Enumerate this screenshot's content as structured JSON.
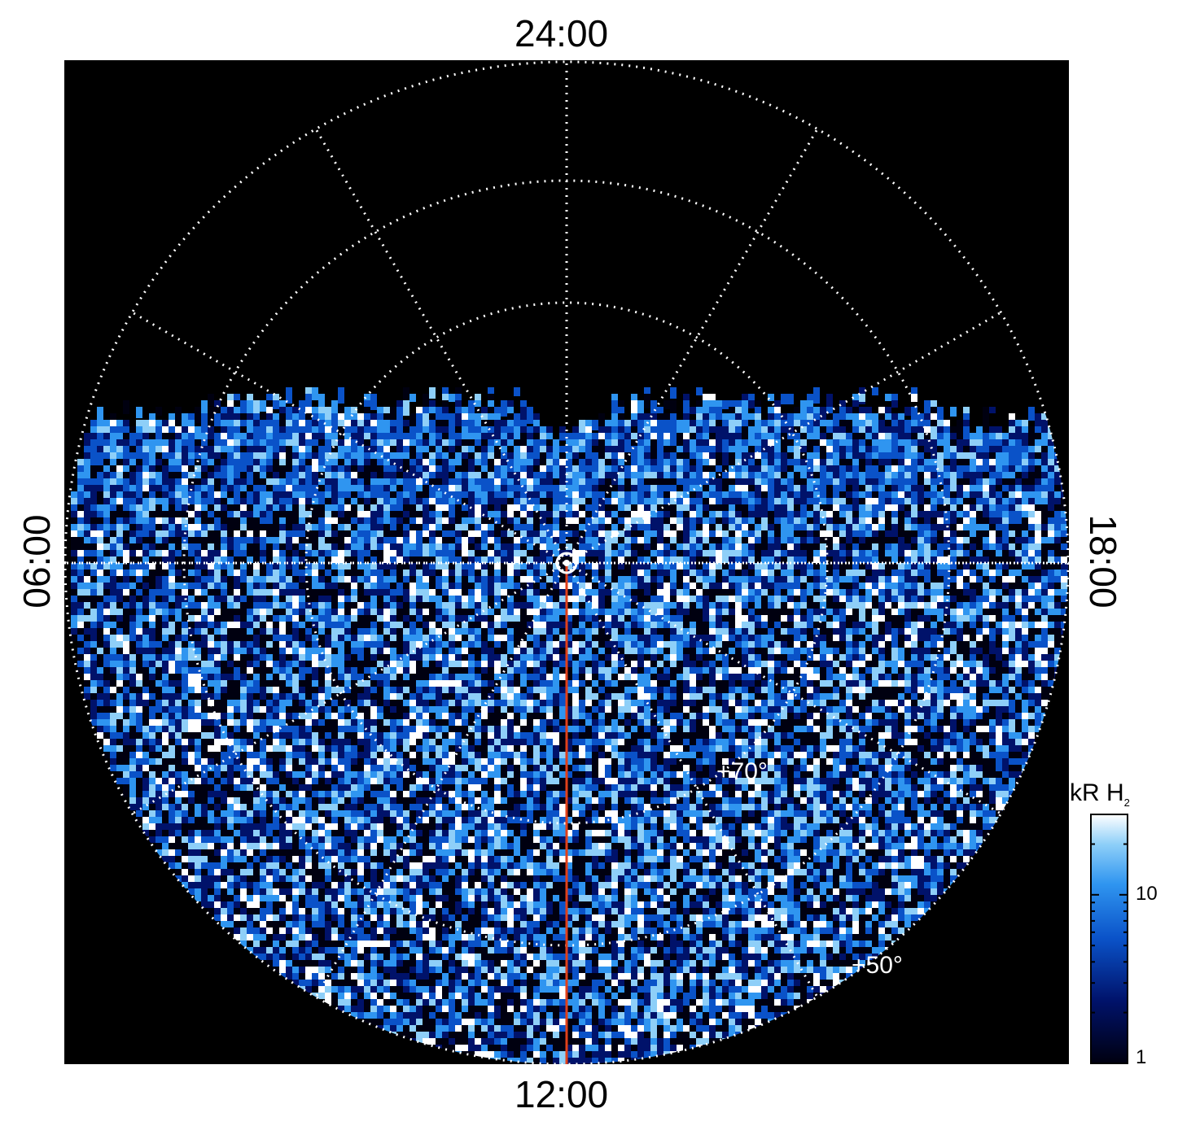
{
  "figure": {
    "time_labels": {
      "top": "24:00",
      "bottom": "12:00",
      "left": "06:00",
      "right": "18:00"
    },
    "latitude_labels": [
      "+70°",
      "+50°"
    ],
    "colorbar": {
      "title": "kR H",
      "title_subscript": "2",
      "ticks": [
        "10",
        "1"
      ],
      "scale": "log",
      "colors": [
        "#000010",
        "#00126a",
        "#0a52c8",
        "#2f95f0",
        "#8ecff8",
        "#ffffff"
      ]
    },
    "colors": {
      "background": "#000000",
      "grid": "#ffffff",
      "meridian_line": "#e0401a"
    }
  }
}
